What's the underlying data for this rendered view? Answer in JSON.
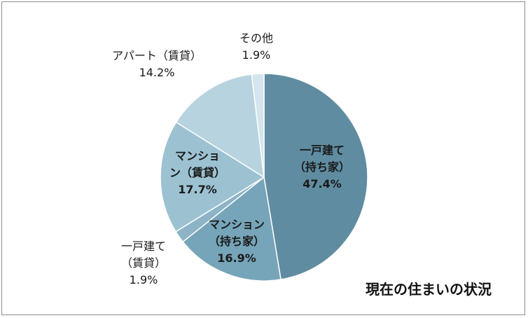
{
  "chart_data": {
    "type": "pie",
    "title": "現在の住まいの状況",
    "slices": [
      {
        "label_lines": [
          "一戸建て",
          "（持ち家）"
        ],
        "value_text": "47.4%",
        "value": 47.4,
        "color": "#5f8ca0"
      },
      {
        "label_lines": [
          "マンション",
          "（持ち家）"
        ],
        "value_text": "16.9%",
        "value": 16.9,
        "color": "#76a4b8"
      },
      {
        "label_lines": [
          "一戸建て",
          "（賃貸）"
        ],
        "value_text": "1.9%",
        "value": 1.9,
        "color": "#8cb4c6"
      },
      {
        "label_lines": [
          "マンショ",
          "ン（賃貸）"
        ],
        "value_text": "17.7%",
        "value": 17.7,
        "color": "#9cc2d2"
      },
      {
        "label_lines": [
          "アパート（賃貸）"
        ],
        "value_text": "14.2%",
        "value": 14.2,
        "color": "#b7d3df"
      },
      {
        "label_lines": [
          "その他"
        ],
        "value_text": "1.9%",
        "value": 1.9,
        "color": "#d4e5ed"
      }
    ]
  }
}
